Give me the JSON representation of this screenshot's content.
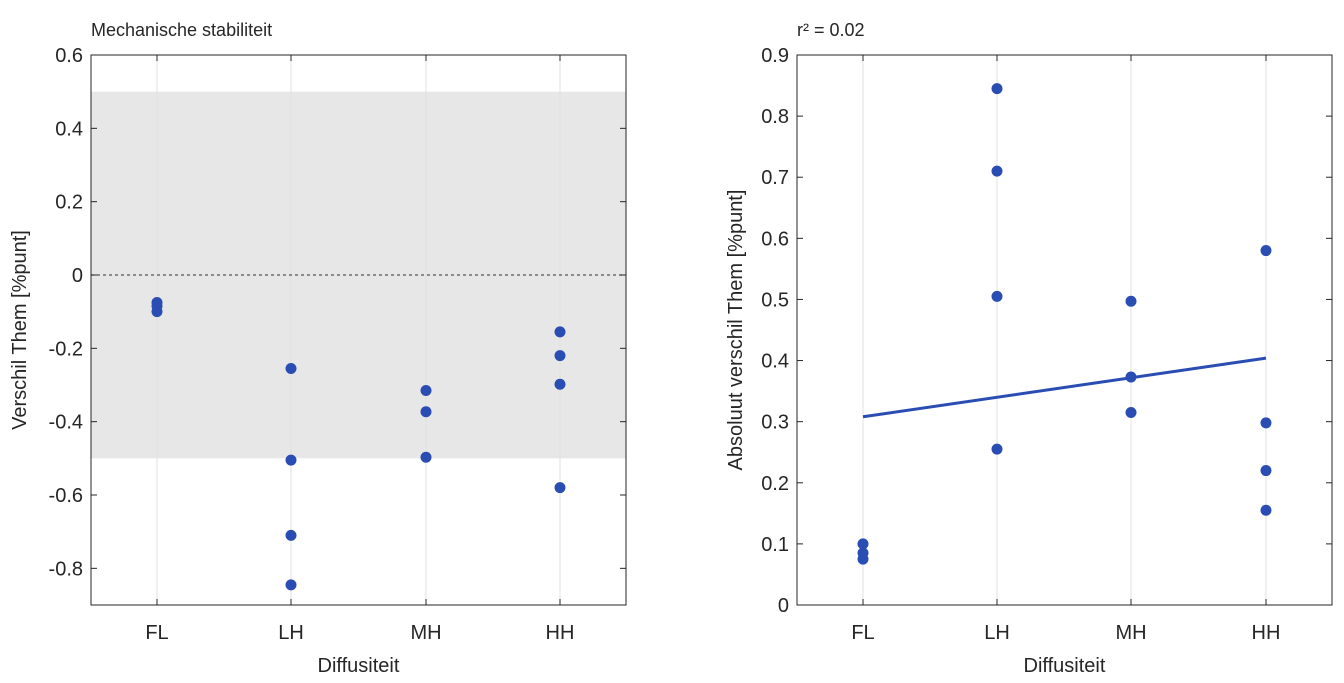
{
  "chart_data": [
    {
      "type": "scatter",
      "title": "Mechanische stabiliteit",
      "xlabel": "Diffusiteit",
      "ylabel": "Verschil Them [%punt]",
      "categories": [
        "FL",
        "LH",
        "MH",
        "HH"
      ],
      "ylim": [
        -0.9,
        0.6
      ],
      "yticks": [
        0.6,
        0.4,
        0.2,
        0,
        -0.2,
        -0.4,
        -0.6,
        -0.8
      ],
      "ytick_labels": [
        "0.6",
        "0.4",
        "0.2",
        "0",
        "-0.2",
        "-0.4",
        "-0.6",
        "-0.8"
      ],
      "grid": "vertical",
      "shaded_band": [
        -0.5,
        0.5
      ],
      "reference_line": 0,
      "series": [
        {
          "points": [
            {
              "x": "FL",
              "y": -0.075
            },
            {
              "x": "FL",
              "y": -0.085
            },
            {
              "x": "FL",
              "y": -0.1
            },
            {
              "x": "LH",
              "y": -0.255
            },
            {
              "x": "LH",
              "y": -0.505
            },
            {
              "x": "LH",
              "y": -0.71
            },
            {
              "x": "LH",
              "y": -0.845
            },
            {
              "x": "MH",
              "y": -0.315
            },
            {
              "x": "MH",
              "y": -0.373
            },
            {
              "x": "MH",
              "y": -0.497
            },
            {
              "x": "HH",
              "y": -0.155
            },
            {
              "x": "HH",
              "y": -0.22
            },
            {
              "x": "HH",
              "y": -0.298
            },
            {
              "x": "HH",
              "y": -0.58
            }
          ]
        }
      ],
      "colors": {
        "marker": "#2a4db3",
        "band": "#e7e7e7",
        "grid": "#e0e0e0",
        "axis": "#262626"
      }
    },
    {
      "type": "scatter",
      "title": "r² = 0.02",
      "xlabel": "Diffusiteit",
      "ylabel": "Absoluut verschil Them [%punt]",
      "categories": [
        "FL",
        "LH",
        "MH",
        "HH"
      ],
      "ylim": [
        0,
        0.9
      ],
      "yticks": [
        0.9,
        0.8,
        0.7,
        0.6,
        0.5,
        0.4,
        0.3,
        0.2,
        0.1,
        0
      ],
      "ytick_labels": [
        "0.9",
        "0.8",
        "0.7",
        "0.6",
        "0.5",
        "0.4",
        "0.3",
        "0.2",
        "0.1",
        "0"
      ],
      "grid": "vertical",
      "series": [
        {
          "points": [
            {
              "x": "FL",
              "y": 0.075
            },
            {
              "x": "FL",
              "y": 0.085
            },
            {
              "x": "FL",
              "y": 0.1
            },
            {
              "x": "LH",
              "y": 0.845
            },
            {
              "x": "LH",
              "y": 0.71
            },
            {
              "x": "LH",
              "y": 0.505
            },
            {
              "x": "LH",
              "y": 0.255
            },
            {
              "x": "MH",
              "y": 0.497
            },
            {
              "x": "MH",
              "y": 0.373
            },
            {
              "x": "MH",
              "y": 0.315
            },
            {
              "x": "HH",
              "y": 0.58
            },
            {
              "x": "HH",
              "y": 0.298
            },
            {
              "x": "HH",
              "y": 0.22
            },
            {
              "x": "HH",
              "y": 0.155
            }
          ]
        }
      ],
      "fit_line": {
        "x_start": "FL",
        "y_start": 0.308,
        "x_end": "HH",
        "y_end": 0.404
      },
      "colors": {
        "marker": "#2a4db3",
        "line": "#2a4db3",
        "grid": "#e0e0e0",
        "axis": "#262626"
      }
    }
  ]
}
